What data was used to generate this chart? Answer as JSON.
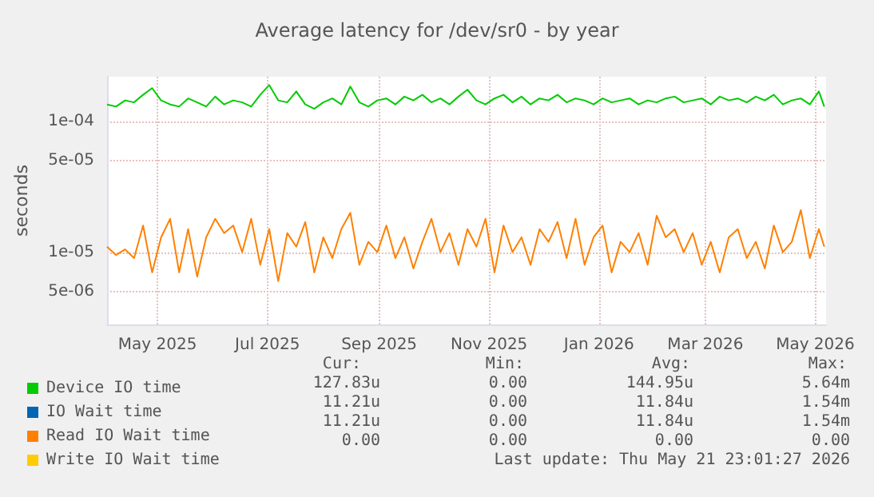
{
  "chart_data": {
    "type": "line",
    "title": "Average latency for /dev/sr0 - by year",
    "ylabel": "seconds",
    "log": "y",
    "grid": true,
    "legend": "bottom",
    "marker": "none",
    "line_style": "solid",
    "x": [
      "2025-04-18",
      "2025-04-23",
      "2025-04-28",
      "2025-05-03",
      "2025-05-08",
      "2025-05-13",
      "2025-05-18",
      "2025-05-23",
      "2025-05-28",
      "2025-06-02",
      "2025-06-07",
      "2025-06-12",
      "2025-06-17",
      "2025-06-22",
      "2025-06-27",
      "2025-07-02",
      "2025-07-07",
      "2025-07-12",
      "2025-07-17",
      "2025-07-22",
      "2025-07-27",
      "2025-08-01",
      "2025-08-06",
      "2025-08-11",
      "2025-08-16",
      "2025-08-21",
      "2025-08-26",
      "2025-08-31",
      "2025-09-05",
      "2025-09-10",
      "2025-09-15",
      "2025-09-20",
      "2025-09-25",
      "2025-09-30",
      "2025-10-05",
      "2025-10-10",
      "2025-10-15",
      "2025-10-20",
      "2025-10-25",
      "2025-10-30",
      "2025-11-04",
      "2025-11-09",
      "2025-11-14",
      "2025-11-19",
      "2025-11-24",
      "2025-11-29",
      "2025-12-04",
      "2025-12-09",
      "2025-12-14",
      "2025-12-19",
      "2025-12-24",
      "2025-12-29",
      "2026-01-03",
      "2026-01-08",
      "2026-01-13",
      "2026-01-18",
      "2026-01-23",
      "2026-01-28",
      "2026-02-02",
      "2026-02-07",
      "2026-02-12",
      "2026-02-17",
      "2026-02-22",
      "2026-02-27",
      "2026-03-04",
      "2026-03-09",
      "2026-03-14",
      "2026-03-19",
      "2026-03-24",
      "2026-03-29",
      "2026-04-03",
      "2026-04-08",
      "2026-04-13",
      "2026-04-18",
      "2026-04-23",
      "2026-04-28",
      "2026-05-03",
      "2026-05-08",
      "2026-05-13",
      "2026-05-18",
      "2026-05-21"
    ],
    "xlim": [
      "2025-04-18",
      "2026-05-22"
    ],
    "xticks": [
      {
        "value": "2025-05-16",
        "label": "May 2025"
      },
      {
        "value": "2025-07-16",
        "label": "Jul 2025"
      },
      {
        "value": "2025-09-16",
        "label": "Sep 2025"
      },
      {
        "value": "2025-11-16",
        "label": "Nov 2025"
      },
      {
        "value": "2026-01-16",
        "label": "Jan 2026"
      },
      {
        "value": "2026-03-16",
        "label": "Mar 2026"
      },
      {
        "value": "2026-05-16",
        "label": "May 2026"
      }
    ],
    "ylim": [
      2.8e-06,
      0.00022
    ],
    "yticks": [
      {
        "value": 5e-06,
        "label": "5e-06"
      },
      {
        "value": 1e-05,
        "label": "1e-05"
      },
      {
        "value": 5e-05,
        "label": "5e-05"
      },
      {
        "value": 0.0001,
        "label": "1e-04"
      }
    ],
    "series": [
      {
        "name": "Device IO time",
        "color": "#00cc00",
        "values": [
          0.000135,
          0.00013,
          0.000145,
          0.00014,
          0.00016,
          0.00018,
          0.000145,
          0.000135,
          0.00013,
          0.00015,
          0.00014,
          0.00013,
          0.000155,
          0.000135,
          0.000145,
          0.00014,
          0.00013,
          0.00016,
          0.00019,
          0.000145,
          0.00014,
          0.00017,
          0.000135,
          0.000125,
          0.00014,
          0.00015,
          0.000135,
          0.000185,
          0.00014,
          0.00013,
          0.000145,
          0.00015,
          0.000135,
          0.000155,
          0.000145,
          0.00016,
          0.00014,
          0.00015,
          0.000135,
          0.000155,
          0.000175,
          0.000145,
          0.000135,
          0.00015,
          0.00016,
          0.00014,
          0.000155,
          0.000135,
          0.00015,
          0.000145,
          0.00016,
          0.00014,
          0.00015,
          0.000145,
          0.000135,
          0.00015,
          0.00014,
          0.000145,
          0.00015,
          0.000135,
          0.000145,
          0.00014,
          0.00015,
          0.000155,
          0.00014,
          0.000145,
          0.00015,
          0.000135,
          0.000155,
          0.000145,
          0.00015,
          0.00014,
          0.000155,
          0.000145,
          0.00016,
          0.000135,
          0.000145,
          0.00015,
          0.000135,
          0.00017,
          0.00013
        ]
      },
      {
        "name": "IO Wait time",
        "color": "#0066b3",
        "values": [
          null,
          null,
          null,
          null,
          null,
          null,
          null,
          null,
          null,
          null,
          null,
          null,
          null,
          null,
          null,
          null,
          null,
          null,
          null,
          null,
          null,
          null,
          null,
          null,
          null,
          null,
          null,
          null,
          null,
          null,
          null,
          null,
          null,
          null,
          null,
          null,
          null,
          null,
          null,
          null,
          null,
          null,
          null,
          null,
          null,
          null,
          null,
          null,
          null,
          null,
          null,
          null,
          null,
          null,
          null,
          null,
          null,
          null,
          null,
          null,
          null,
          null,
          null,
          null,
          null,
          null,
          null,
          null,
          null,
          null,
          null,
          null,
          null,
          null,
          null,
          null,
          null,
          null,
          null,
          null,
          null
        ]
      },
      {
        "name": "Read IO Wait time",
        "color": "#ff8000",
        "values": [
          1.1e-05,
          9.5e-06,
          1.05e-05,
          9e-06,
          1.6e-05,
          7e-06,
          1.3e-05,
          1.8e-05,
          7e-06,
          1.5e-05,
          6.5e-06,
          1.3e-05,
          1.8e-05,
          1.4e-05,
          1.6e-05,
          1e-05,
          1.8e-05,
          8e-06,
          1.5e-05,
          6e-06,
          1.4e-05,
          1.1e-05,
          1.7e-05,
          7e-06,
          1.3e-05,
          9e-06,
          1.5e-05,
          2e-05,
          8e-06,
          1.2e-05,
          1e-05,
          1.6e-05,
          9e-06,
          1.3e-05,
          7.5e-06,
          1.2e-05,
          1.8e-05,
          1e-05,
          1.4e-05,
          8e-06,
          1.5e-05,
          1.1e-05,
          1.8e-05,
          7e-06,
          1.6e-05,
          1e-05,
          1.3e-05,
          8e-06,
          1.5e-05,
          1.2e-05,
          1.7e-05,
          9e-06,
          1.8e-05,
          8e-06,
          1.3e-05,
          1.6e-05,
          7e-06,
          1.2e-05,
          1e-05,
          1.4e-05,
          8e-06,
          1.9e-05,
          1.3e-05,
          1.5e-05,
          1e-05,
          1.4e-05,
          8e-06,
          1.2e-05,
          7e-06,
          1.3e-05,
          1.5e-05,
          9e-06,
          1.2e-05,
          7.5e-06,
          1.6e-05,
          1e-05,
          1.2e-05,
          2.1e-05,
          9e-06,
          1.5e-05,
          1.1e-05
        ]
      },
      {
        "name": "Write IO Wait time",
        "color": "#ffcc00",
        "values": [
          null,
          null,
          null,
          null,
          null,
          null,
          null,
          null,
          null,
          null,
          null,
          null,
          null,
          null,
          null,
          null,
          null,
          null,
          null,
          null,
          null,
          null,
          null,
          null,
          null,
          null,
          null,
          null,
          null,
          null,
          null,
          null,
          null,
          null,
          null,
          null,
          null,
          null,
          null,
          null,
          null,
          null,
          null,
          null,
          null,
          null,
          null,
          null,
          null,
          null,
          null,
          null,
          null,
          null,
          null,
          null,
          null,
          null,
          null,
          null,
          null,
          null,
          null,
          null,
          null,
          null,
          null,
          null,
          null,
          null,
          null,
          null,
          null,
          null,
          null,
          null,
          null,
          null,
          null,
          null,
          null
        ]
      }
    ],
    "annotations": [
      "Cur:",
      "Min:",
      "Avg:",
      "Max:",
      "127.83u",
      "0.00",
      "144.95u",
      "5.64m",
      "11.21u",
      "0.00",
      "11.84u",
      "1.54m",
      "11.21u",
      "0.00",
      "11.84u",
      "1.54m",
      "0.00",
      "0.00",
      "0.00",
      "0.00",
      "Last update: Thu May 21 23:01:27 2026"
    ]
  }
}
